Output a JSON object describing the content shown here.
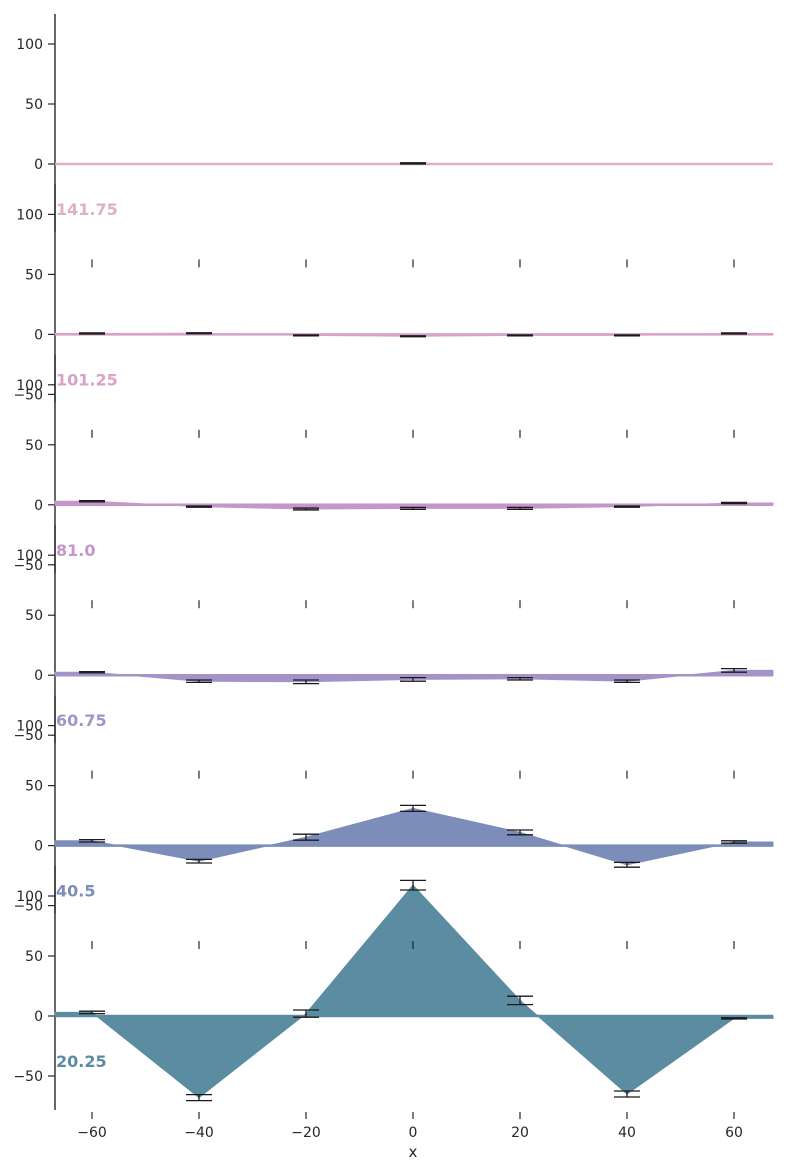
{
  "chart_data": {
    "type": "area",
    "xlabel": "x",
    "x": [
      -60,
      -40,
      -20,
      0,
      20,
      40,
      60
    ],
    "x_ticks": [
      "−60",
      "−40",
      "−20",
      "0",
      "20",
      "40",
      "60"
    ],
    "y_ticks": [
      "−50",
      "0",
      "50",
      "100"
    ],
    "ylim": [
      -80,
      125
    ],
    "xlim": [
      -67,
      67
    ],
    "grid": false,
    "rows": [
      {
        "label": "141.75",
        "color": "#dfb0c0",
        "values": [
          0,
          0,
          0,
          0.5,
          0,
          0,
          0
        ],
        "errors": [
          0,
          0,
          0,
          0.5,
          0,
          0,
          0
        ]
      },
      {
        "label": "101.25",
        "color": "#d7a3c8",
        "values": [
          0.8,
          1,
          -0.8,
          -1.5,
          -0.8,
          -0.8,
          0.8
        ],
        "errors": [
          0.4,
          0.4,
          0.4,
          0.4,
          0.4,
          0.4,
          0.4
        ]
      },
      {
        "label": "81.0",
        "color": "#c596c9",
        "values": [
          3,
          -1.5,
          -3.5,
          -3,
          -3,
          -1.5,
          1.5
        ],
        "errors": [
          0.5,
          0.5,
          0.8,
          0.8,
          0.8,
          0.5,
          0.5
        ]
      },
      {
        "label": "60.75",
        "color": "#a393c8",
        "values": [
          2.5,
          -5,
          -5.5,
          -3.5,
          -3,
          -5,
          4
        ],
        "errors": [
          0.5,
          1,
          1.5,
          1.5,
          1,
          1,
          1.5
        ]
      },
      {
        "label": "40.5",
        "color": "#7b8db8",
        "values": [
          4,
          -13,
          7,
          31,
          11,
          -16,
          3
        ],
        "errors": [
          1,
          1.5,
          2.5,
          2.5,
          2,
          2,
          1
        ]
      },
      {
        "label": "20.25",
        "color": "#5b8ca1",
        "values": [
          3,
          -68,
          2,
          109,
          13,
          -65,
          -2
        ],
        "errors": [
          1,
          2.5,
          3,
          4,
          3.5,
          2.5,
          0.5
        ]
      }
    ]
  }
}
